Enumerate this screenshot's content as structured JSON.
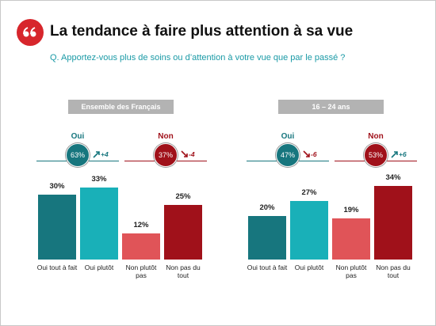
{
  "header": {
    "title": "La tendance à faire plus attention à sa vue",
    "question": "Q. Apportez-vous plus de soins ou d’attention à votre vue que par le passé ?"
  },
  "chart_data": [
    {
      "type": "bar",
      "title": "Ensemble des Français",
      "categories": [
        "Oui tout à fait",
        "Oui plutôt",
        "Non plutôt pas",
        "Non pas du tout"
      ],
      "values": [
        30,
        33,
        12,
        25
      ],
      "value_labels": [
        "30%",
        "33%",
        "12%",
        "25%"
      ],
      "colors": [
        "#17767e",
        "#19b0b8",
        "#e05458",
        "#a0111a"
      ],
      "summary": [
        {
          "label": "Oui",
          "value": 63,
          "value_label": "63%",
          "change": 4,
          "change_label": "+4",
          "color": "#17767e"
        },
        {
          "label": "Non",
          "value": 37,
          "value_label": "37%",
          "change": -4,
          "change_label": "-4",
          "color": "#a0111a"
        }
      ]
    },
    {
      "type": "bar",
      "title": "16 – 24 ans",
      "categories": [
        "Oui tout à fait",
        "Oui plutôt",
        "Non plutôt pas",
        "Non pas du tout"
      ],
      "values": [
        20,
        27,
        19,
        34
      ],
      "value_labels": [
        "20%",
        "27%",
        "19%",
        "34%"
      ],
      "colors": [
        "#17767e",
        "#19b0b8",
        "#e05458",
        "#a0111a"
      ],
      "summary": [
        {
          "label": "Oui",
          "value": 47,
          "value_label": "47%",
          "change": -6,
          "change_label": "-6",
          "color": "#17767e"
        },
        {
          "label": "Non",
          "value": 53,
          "value_label": "53%",
          "change": 6,
          "change_label": "+6",
          "color": "#a0111a"
        }
      ]
    }
  ]
}
